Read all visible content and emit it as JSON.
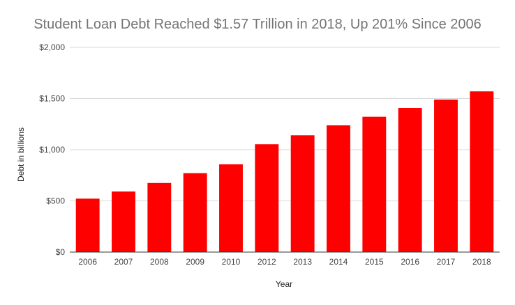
{
  "chart_data": {
    "type": "bar",
    "title": "Student Loan Debt Reached $1.57 Trillion in 2018, Up 201% Since 2006",
    "xlabel": "Year",
    "ylabel": "Debt in billions",
    "categories": [
      "2006",
      "2007",
      "2008",
      "2009",
      "2010",
      "2012",
      "2013",
      "2014",
      "2015",
      "2016",
      "2017",
      "2018"
    ],
    "values": [
      522,
      592,
      675,
      771,
      857,
      1053,
      1141,
      1238,
      1322,
      1408,
      1490,
      1570
    ],
    "ylim": [
      0,
      2000
    ],
    "yticks": [
      0,
      500,
      1000,
      1500,
      2000
    ],
    "ytick_labels": [
      "$0",
      "$500",
      "$1,000",
      "$1,500",
      "$2,000"
    ],
    "bar_color": "#ff0000",
    "grid": true,
    "legend": "none"
  }
}
